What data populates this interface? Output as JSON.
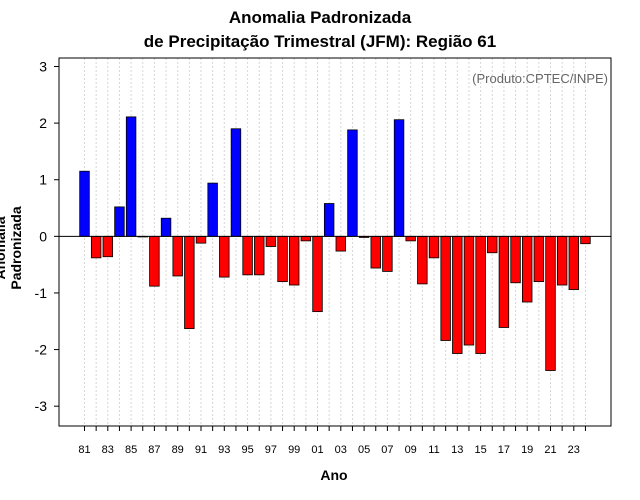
{
  "chart_data": {
    "type": "bar",
    "title": "Anomalia Padronizada",
    "subtitle": "de Precipitação Trimestral (JFM): Região 61",
    "xlabel": "Ano",
    "ylabel": "Anomalia Padronizada",
    "credit": "(Produto:CPTEC/INPE)",
    "ylim": [
      -3.35,
      3.15
    ],
    "yticks": [
      "-3",
      "-2",
      "-1",
      "0",
      "1",
      "2",
      "3"
    ],
    "ytick_values": [
      -3,
      -2,
      -1,
      0,
      1,
      2,
      3
    ],
    "xtick_labels": [
      "81",
      "83",
      "85",
      "87",
      "89",
      "91",
      "93",
      "95",
      "97",
      "99",
      "01",
      "03",
      "05",
      "07",
      "09",
      "11",
      "13",
      "15",
      "17",
      "19",
      "21",
      "23"
    ],
    "categories": [
      "1981",
      "1982",
      "1983",
      "1984",
      "1985",
      "1986",
      "1987",
      "1988",
      "1989",
      "1990",
      "1991",
      "1992",
      "1993",
      "1994",
      "1995",
      "1996",
      "1997",
      "1998",
      "1999",
      "2000",
      "2001",
      "2002",
      "2003",
      "2004",
      "2005",
      "2006",
      "2007",
      "2008",
      "2009",
      "2010",
      "2011",
      "2012",
      "2013",
      "2014",
      "2015",
      "2016",
      "2017",
      "2018",
      "2019",
      "2020",
      "2021",
      "2022",
      "2023",
      "2024"
    ],
    "values": [
      1.15,
      -0.38,
      -0.36,
      0.52,
      2.11,
      0.0,
      -0.88,
      0.32,
      -0.7,
      -1.63,
      -0.12,
      0.94,
      -0.72,
      1.9,
      -0.68,
      -0.68,
      -0.18,
      -0.8,
      -0.86,
      -0.08,
      -1.33,
      0.58,
      -0.26,
      1.88,
      -0.02,
      -0.56,
      -0.62,
      2.06,
      -0.08,
      -0.84,
      -0.38,
      -1.84,
      -2.07,
      -1.92,
      -2.07,
      -0.29,
      -1.61,
      -0.82,
      -1.16,
      -0.8,
      -2.37,
      -0.86,
      -0.94,
      -0.13
    ],
    "positive_color": "#0000ff",
    "negative_color": "#ff0000"
  }
}
